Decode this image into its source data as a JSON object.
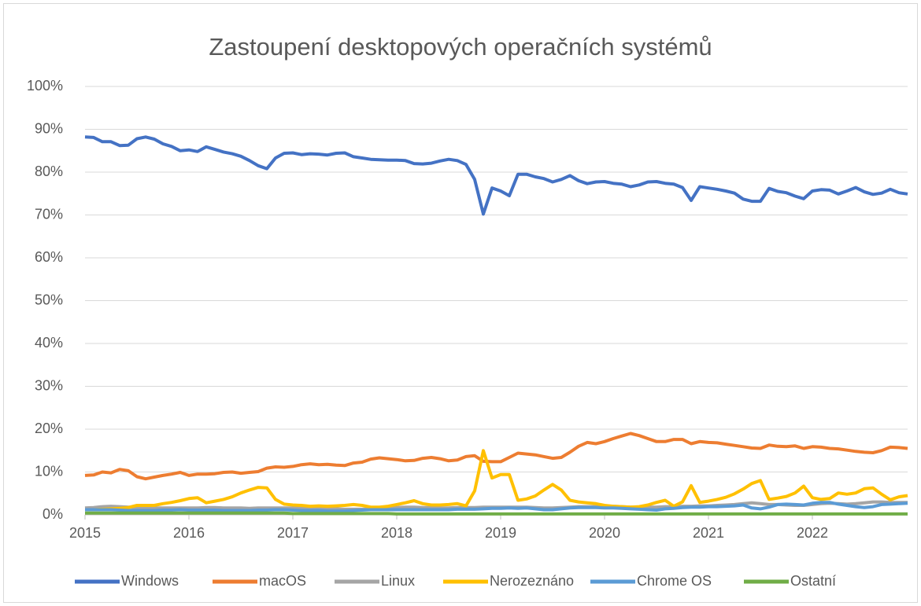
{
  "chart_data": {
    "type": "line",
    "title": "Zastoupení desktopových operačních systémů",
    "categories": [
      "2015",
      null,
      null,
      null,
      null,
      null,
      null,
      null,
      null,
      null,
      null,
      null,
      "2016",
      null,
      null,
      null,
      null,
      null,
      null,
      null,
      null,
      null,
      null,
      null,
      "2017",
      null,
      null,
      null,
      null,
      null,
      null,
      null,
      null,
      null,
      null,
      null,
      "2018",
      null,
      null,
      null,
      null,
      null,
      null,
      null,
      null,
      null,
      null,
      null,
      "2019",
      null,
      null,
      null,
      null,
      null,
      null,
      null,
      null,
      null,
      null,
      null,
      "2020",
      null,
      null,
      null,
      null,
      null,
      null,
      null,
      null,
      null,
      null,
      null,
      "2021",
      null,
      null,
      null,
      null,
      null,
      null,
      null,
      null,
      null,
      null,
      null,
      "2022",
      null,
      null,
      null,
      null,
      null,
      null,
      null,
      null,
      null,
      null,
      null
    ],
    "ylim": [
      0,
      100
    ],
    "yticks": [
      {
        "value": 0,
        "label": "0%"
      },
      {
        "value": 10,
        "label": "10%"
      },
      {
        "value": 20,
        "label": "20%"
      },
      {
        "value": 30,
        "label": "30%"
      },
      {
        "value": 40,
        "label": "40%"
      },
      {
        "value": 50,
        "label": "50%"
      },
      {
        "value": 60,
        "label": "60%"
      },
      {
        "value": 70,
        "label": "70%"
      },
      {
        "value": 80,
        "label": "80%"
      },
      {
        "value": 90,
        "label": "90%"
      },
      {
        "value": 100,
        "label": "100%"
      }
    ],
    "grid": true,
    "legend": "bottom",
    "series": [
      {
        "name": "Windows",
        "color": "#4472c4",
        "values": [
          88.2,
          88.1,
          87.1,
          87.1,
          86.2,
          86.3,
          87.8,
          88.2,
          87.7,
          86.6,
          86.0,
          85.0,
          85.2,
          84.8,
          85.9,
          85.3,
          84.7,
          84.3,
          83.7,
          82.7,
          81.5,
          80.8,
          83.3,
          84.4,
          84.5,
          84.1,
          84.3,
          84.2,
          84.0,
          84.4,
          84.5,
          83.6,
          83.3,
          83.0,
          82.9,
          82.8,
          82.8,
          82.7,
          82.0,
          81.9,
          82.1,
          82.6,
          83.0,
          82.7,
          81.8,
          78.3,
          70.2,
          76.3,
          75.6,
          74.5,
          79.5,
          79.5,
          78.9,
          78.5,
          77.7,
          78.3,
          79.2,
          78.0,
          77.3,
          77.7,
          77.8,
          77.4,
          77.2,
          76.6,
          77.0,
          77.7,
          77.8,
          77.4,
          77.2,
          76.4,
          73.4,
          76.6,
          76.3,
          76.0,
          75.6,
          75.1,
          73.7,
          73.2,
          73.2,
          76.2,
          75.5,
          75.2,
          74.4,
          73.8,
          75.6,
          75.9,
          75.8,
          74.9,
          75.6,
          76.4,
          75.4,
          74.8,
          75.1,
          76.0,
          75.2,
          74.9
        ]
      },
      {
        "name": "macOS",
        "color": "#ed7d31",
        "values": [
          9.2,
          9.3,
          10.0,
          9.8,
          10.6,
          10.3,
          8.9,
          8.4,
          8.8,
          9.2,
          9.5,
          9.9,
          9.2,
          9.5,
          9.5,
          9.6,
          9.9,
          10.0,
          9.7,
          9.9,
          10.1,
          10.9,
          11.2,
          11.1,
          11.3,
          11.7,
          11.9,
          11.7,
          11.8,
          11.6,
          11.5,
          12.1,
          12.3,
          13.0,
          13.3,
          13.1,
          12.9,
          12.6,
          12.7,
          13.2,
          13.4,
          13.1,
          12.6,
          12.8,
          13.6,
          13.8,
          12.5,
          12.4,
          12.4,
          13.4,
          14.4,
          14.2,
          14.0,
          13.6,
          13.2,
          13.4,
          14.6,
          16.0,
          16.9,
          16.6,
          17.1,
          17.8,
          18.4,
          19.0,
          18.5,
          17.8,
          17.1,
          17.1,
          17.6,
          17.6,
          16.6,
          17.1,
          16.9,
          16.8,
          16.5,
          16.2,
          15.9,
          15.6,
          15.5,
          16.3,
          16.0,
          15.9,
          16.1,
          15.5,
          15.9,
          15.8,
          15.5,
          15.4,
          15.1,
          14.8,
          14.6,
          14.5,
          15.0,
          15.8,
          15.7,
          15.5
        ]
      },
      {
        "name": "Linux",
        "color": "#a5a5a5",
        "values": [
          1.6,
          1.7,
          1.9,
          2.0,
          1.9,
          1.8,
          1.7,
          1.6,
          1.6,
          1.6,
          1.6,
          1.6,
          1.6,
          1.6,
          1.7,
          1.7,
          1.6,
          1.6,
          1.6,
          1.5,
          1.6,
          1.6,
          1.6,
          1.6,
          1.6,
          1.6,
          1.5,
          1.5,
          1.4,
          1.4,
          1.3,
          1.3,
          1.3,
          1.4,
          1.5,
          1.6,
          1.7,
          1.8,
          1.8,
          1.7,
          1.7,
          1.6,
          1.6,
          1.7,
          1.7,
          1.7,
          1.8,
          1.8,
          1.8,
          1.8,
          1.8,
          1.8,
          1.7,
          1.6,
          1.6,
          1.7,
          1.8,
          1.9,
          1.9,
          1.9,
          1.9,
          2.0,
          1.9,
          1.8,
          1.8,
          1.8,
          1.8,
          1.9,
          1.9,
          2.0,
          2.0,
          2.1,
          2.1,
          2.2,
          2.3,
          2.4,
          2.6,
          2.8,
          2.6,
          2.4,
          2.4,
          2.3,
          2.2,
          2.2,
          2.4,
          2.6,
          2.7,
          2.6,
          2.5,
          2.6,
          2.8,
          3.0,
          3.0,
          2.9,
          2.9,
          2.9
        ]
      },
      {
        "name": "Nerozeznáno",
        "color": "#ffc000",
        "values": [
          1.2,
          1.2,
          1.3,
          1.4,
          1.5,
          1.7,
          2.2,
          2.2,
          2.2,
          2.6,
          2.9,
          3.3,
          3.8,
          4.0,
          2.8,
          3.2,
          3.6,
          4.2,
          5.1,
          5.8,
          6.4,
          6.3,
          3.6,
          2.5,
          2.3,
          2.2,
          2.0,
          2.1,
          2.0,
          2.1,
          2.2,
          2.4,
          2.2,
          1.8,
          1.8,
          2.0,
          2.4,
          2.8,
          3.3,
          2.6,
          2.3,
          2.3,
          2.4,
          2.6,
          2.1,
          5.6,
          15.0,
          8.6,
          9.4,
          9.4,
          3.4,
          3.7,
          4.4,
          5.8,
          7.1,
          5.8,
          3.4,
          3.0,
          2.8,
          2.6,
          2.2,
          2.0,
          1.9,
          1.8,
          1.9,
          2.3,
          2.9,
          3.4,
          2.0,
          3.0,
          6.8,
          2.9,
          3.2,
          3.6,
          4.1,
          4.9,
          6.0,
          7.3,
          8.0,
          3.6,
          3.9,
          4.3,
          5.1,
          6.7,
          4.0,
          3.6,
          3.8,
          5.1,
          4.8,
          5.1,
          6.1,
          6.3,
          4.8,
          3.5,
          4.2,
          4.5
        ]
      },
      {
        "name": "Chrome OS",
        "color": "#5b9bd5",
        "values": [
          1.2,
          1.2,
          1.2,
          1.2,
          1.1,
          1.0,
          1.0,
          1.0,
          1.0,
          1.1,
          1.1,
          1.2,
          1.1,
          1.1,
          1.1,
          1.1,
          1.0,
          1.0,
          1.0,
          1.0,
          1.1,
          1.1,
          1.2,
          1.2,
          1.1,
          1.0,
          1.0,
          1.0,
          0.9,
          0.9,
          0.9,
          1.0,
          1.1,
          1.2,
          1.2,
          1.2,
          1.2,
          1.2,
          1.2,
          1.2,
          1.2,
          1.2,
          1.2,
          1.3,
          1.3,
          1.3,
          1.4,
          1.5,
          1.5,
          1.6,
          1.5,
          1.6,
          1.4,
          1.2,
          1.2,
          1.4,
          1.6,
          1.7,
          1.7,
          1.7,
          1.6,
          1.6,
          1.5,
          1.4,
          1.3,
          1.2,
          1.1,
          1.4,
          1.5,
          1.7,
          1.8,
          1.8,
          1.9,
          1.9,
          2.0,
          2.1,
          2.3,
          1.6,
          1.4,
          1.8,
          2.4,
          2.5,
          2.4,
          2.3,
          2.7,
          2.9,
          2.9,
          2.5,
          2.2,
          1.9,
          1.7,
          1.9,
          2.4,
          2.5,
          2.6,
          2.7
        ]
      },
      {
        "name": "Ostatní",
        "color": "#70ad47",
        "values": [
          0.4,
          0.4,
          0.4,
          0.4,
          0.4,
          0.4,
          0.4,
          0.4,
          0.4,
          0.4,
          0.4,
          0.4,
          0.4,
          0.4,
          0.4,
          0.4,
          0.4,
          0.4,
          0.4,
          0.4,
          0.4,
          0.4,
          0.4,
          0.4,
          0.3,
          0.3,
          0.3,
          0.3,
          0.3,
          0.3,
          0.3,
          0.3,
          0.3,
          0.3,
          0.3,
          0.3,
          0.2,
          0.2,
          0.2,
          0.2,
          0.2,
          0.2,
          0.2,
          0.2,
          0.2,
          0.2,
          0.2,
          0.2,
          0.2,
          0.2,
          0.2,
          0.2,
          0.2,
          0.2,
          0.2,
          0.2,
          0.2,
          0.2,
          0.2,
          0.2,
          0.2,
          0.2,
          0.2,
          0.2,
          0.2,
          0.2,
          0.2,
          0.2,
          0.2,
          0.2,
          0.2,
          0.2,
          0.2,
          0.2,
          0.2,
          0.2,
          0.2,
          0.2,
          0.2,
          0.2,
          0.2,
          0.2,
          0.2,
          0.2,
          0.2,
          0.2,
          0.2,
          0.2,
          0.2,
          0.2,
          0.2,
          0.2,
          0.2,
          0.2,
          0.2,
          0.2
        ]
      }
    ]
  }
}
